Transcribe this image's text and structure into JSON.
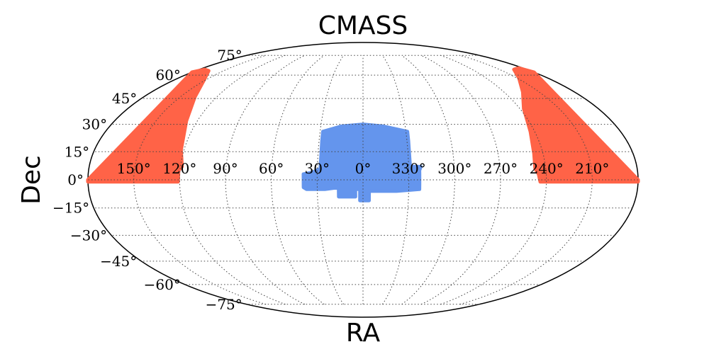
{
  "chart_data": {
    "type": "scatter",
    "projection": "mollweide",
    "title": "CMASS",
    "xlabel": "RA",
    "ylabel": "Dec",
    "grid": true,
    "x_ticks": [
      {
        "value": 150,
        "label": "150°"
      },
      {
        "value": 120,
        "label": "120°"
      },
      {
        "value": 90,
        "label": "90°"
      },
      {
        "value": 60,
        "label": "60°"
      },
      {
        "value": 30,
        "label": "30°"
      },
      {
        "value": 0,
        "label": "0°"
      },
      {
        "value": 330,
        "label": "330°"
      },
      {
        "value": 300,
        "label": "300°"
      },
      {
        "value": 270,
        "label": "270°"
      },
      {
        "value": 240,
        "label": "240°"
      },
      {
        "value": 210,
        "label": "210°"
      }
    ],
    "y_ticks": [
      {
        "value": 75,
        "label": "75°"
      },
      {
        "value": 60,
        "label": "60°"
      },
      {
        "value": 45,
        "label": "45°"
      },
      {
        "value": 30,
        "label": "30°"
      },
      {
        "value": 15,
        "label": "15°"
      },
      {
        "value": 0,
        "label": "0°"
      },
      {
        "value": -15,
        "label": "−15°"
      },
      {
        "value": -30,
        "label": "−30°"
      },
      {
        "value": -45,
        "label": "−45°"
      },
      {
        "value": -60,
        "label": "−60°"
      },
      {
        "value": -75,
        "label": "−75°"
      }
    ],
    "series": [
      {
        "color": "#ff6347",
        "regions": [
          {
            "polygon": [
              [
                180,
                0
              ],
              [
                180,
                62
              ],
              [
                174,
                64
              ],
              [
                166,
                63
              ],
              [
                152,
                57
              ],
              [
                138,
                46
              ],
              [
                128,
                32
              ],
              [
                122,
                16
              ],
              [
                119,
                7
              ],
              [
                121,
                5
              ],
              [
                121,
                -1
              ],
              [
                165,
                -1
              ],
              [
                180,
                -1
              ]
            ]
          },
          {
            "polygon": [
              [
                -180,
                0
              ],
              [
                -180,
                62
              ],
              [
                -175,
                65
              ],
              [
                -166,
                64
              ],
              [
                -152,
                58
              ],
              [
                -136,
                49
              ],
              [
                -123,
                39
              ],
              [
                -117,
                26
              ],
              [
                -114,
                14
              ],
              [
                -113,
                6
              ],
              [
                -115,
                3
              ],
              [
                -116,
                -1
              ],
              [
                -180,
                -1
              ]
            ]
          }
        ]
      },
      {
        "color": "#6495ed",
        "regions": [
          {
            "polygon": [
              [
                -37,
                -2
              ],
              [
                -37,
                3
              ],
              [
                -37,
                5
              ],
              [
                -38,
                7
              ],
              [
                -31,
                7
              ],
              [
                -31,
                21
              ],
              [
                -31,
                26
              ],
              [
                -14,
                29
              ],
              [
                0,
                30
              ],
              [
                15,
                29
              ],
              [
                28,
                26
              ],
              [
                28,
                21
              ],
              [
                28,
                6
              ],
              [
                33,
                4
              ],
              [
                39,
                3
              ],
              [
                39,
                -4
              ],
              [
                37,
                -5
              ],
              [
                25,
                -5
              ],
              [
                16,
                -4
              ],
              [
                16,
                -9
              ],
              [
                5,
                -9
              ],
              [
                5,
                -5
              ],
              [
                2,
                -5
              ],
              [
                2,
                -11
              ],
              [
                -4,
                -11
              ],
              [
                -4,
                -6
              ],
              [
                -22,
                -6
              ],
              [
                -37,
                -5
              ]
            ]
          }
        ]
      }
    ]
  }
}
